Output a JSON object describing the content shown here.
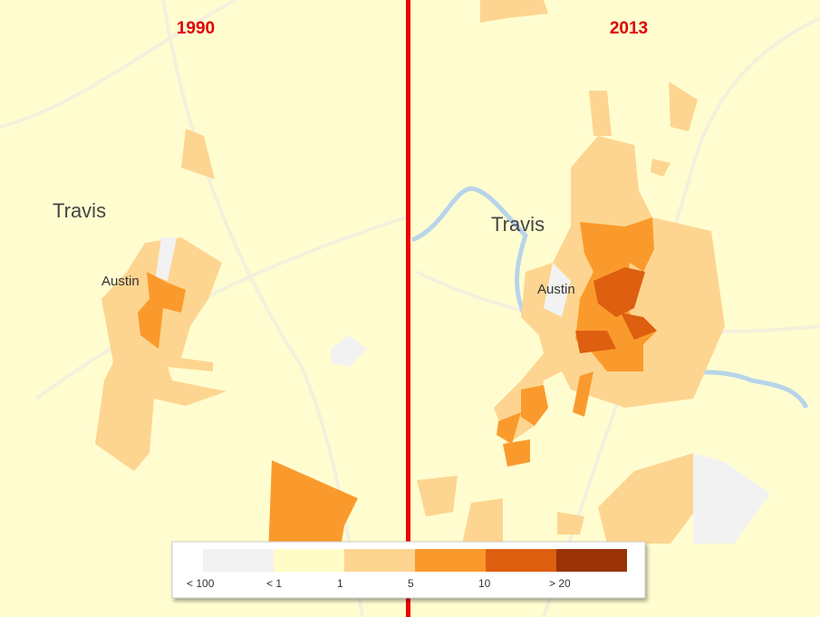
{
  "panels": [
    {
      "title": "1990",
      "places": [
        "Travis",
        "Austin"
      ]
    },
    {
      "title": "2013",
      "places": [
        "Travis",
        "Austin"
      ]
    }
  ],
  "legend": {
    "items": [
      {
        "label": "< 100",
        "color": "#f2f2f2"
      },
      {
        "label": "< 1",
        "color": "#fffcc8"
      },
      {
        "label": "1",
        "color": "#fdd590"
      },
      {
        "label": "5",
        "color": "#fb9a2c"
      },
      {
        "label": "10",
        "color": "#dd5f0f"
      },
      {
        "label": "> 20",
        "color": "#9a3306"
      }
    ]
  }
}
